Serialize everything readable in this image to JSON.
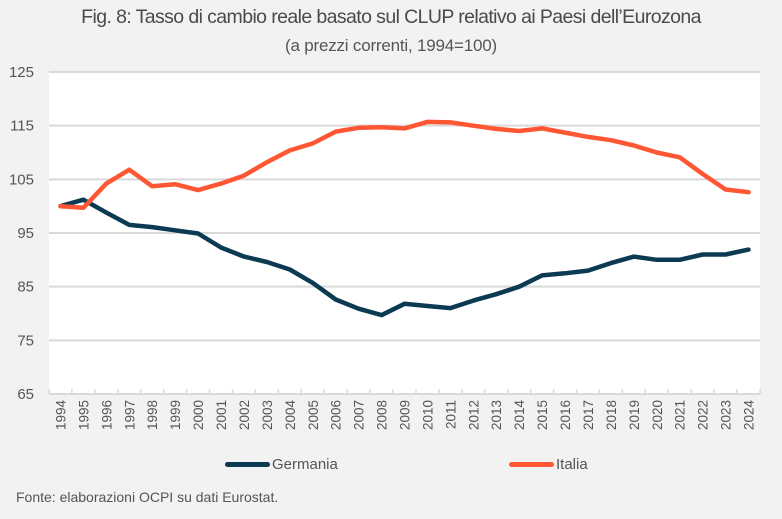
{
  "colors": {
    "background": "#f2f2f2",
    "plot_background": "#ffffff",
    "gridline": "#d9d9d9",
    "germania": "#0b3a52",
    "italia": "#ff5733"
  },
  "legend": {
    "items": [
      {
        "label": "Germania",
        "color": "#0b3a52"
      },
      {
        "label": "Italia",
        "color": "#ff5733"
      }
    ]
  },
  "footer": {
    "source": "Fonte: elaborazioni OCPI su dati Eurostat."
  },
  "chart_data": {
    "type": "line",
    "title": "Fig. 8: Tasso di cambio reale basato sul CLUP relativo ai Paesi dell’Eurozona",
    "subtitle": "(a prezzi correnti, 1994=100)",
    "xlabel": "",
    "ylabel": "",
    "ylim": [
      65,
      125
    ],
    "yticks": [
      125,
      115,
      105,
      95,
      85,
      75,
      65
    ],
    "grid": true,
    "legend_position": "bottom",
    "x": [
      "1994",
      "1995",
      "1996",
      "1997",
      "1998",
      "1999",
      "2000",
      "2001",
      "2002",
      "2003",
      "2004",
      "2005",
      "2006",
      "2007",
      "2008",
      "2009",
      "2010",
      "2011",
      "2012",
      "2013",
      "2014",
      "2015",
      "2016",
      "2017",
      "2018",
      "2019",
      "2020",
      "2021",
      "2022",
      "2023",
      "2024"
    ],
    "series": [
      {
        "name": "Germania",
        "color": "#0b3a52",
        "values": [
          100,
          101.2,
          98.8,
          96.5,
          96.1,
          95.5,
          94.9,
          92.3,
          90.6,
          89.6,
          88.2,
          85.7,
          82.6,
          80.9,
          79.7,
          81.8,
          81.4,
          81.0,
          82.4,
          83.6,
          85.0,
          87.1,
          87.5,
          88.0,
          89.4,
          90.6,
          90.0,
          90.0,
          91.0,
          91.0,
          91.9
        ]
      },
      {
        "name": "Italia",
        "color": "#ff5733",
        "values": [
          100,
          99.7,
          104.2,
          106.8,
          103.7,
          104.1,
          103.0,
          104.2,
          105.7,
          108.2,
          110.4,
          111.7,
          113.9,
          114.6,
          114.7,
          114.5,
          115.7,
          115.6,
          115.0,
          114.4,
          114.0,
          114.5,
          113.7,
          112.9,
          112.3,
          111.3,
          110.0,
          109.1,
          106.0,
          103.1,
          102.6
        ]
      }
    ]
  }
}
